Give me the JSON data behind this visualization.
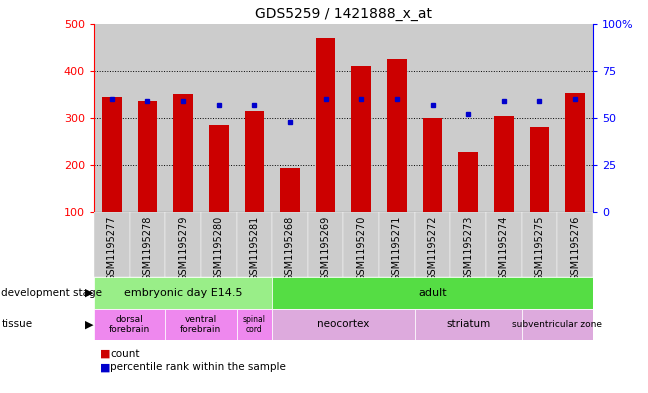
{
  "title": "GDS5259 / 1421888_x_at",
  "samples": [
    "GSM1195277",
    "GSM1195278",
    "GSM1195279",
    "GSM1195280",
    "GSM1195281",
    "GSM1195268",
    "GSM1195269",
    "GSM1195270",
    "GSM1195271",
    "GSM1195272",
    "GSM1195273",
    "GSM1195274",
    "GSM1195275",
    "GSM1195276"
  ],
  "counts": [
    345,
    335,
    350,
    285,
    315,
    193,
    470,
    410,
    425,
    300,
    228,
    305,
    280,
    352
  ],
  "percentiles": [
    60,
    59,
    59,
    57,
    57,
    48,
    60,
    60,
    60,
    57,
    52,
    59,
    59,
    60
  ],
  "ymin": 100,
  "ymax": 500,
  "yticks_left": [
    100,
    200,
    300,
    400,
    500
  ],
  "right_yticks": [
    0,
    25,
    50,
    75,
    100
  ],
  "bar_color": "#cc0000",
  "dot_color": "#0000cc",
  "development_stages": [
    {
      "label": "embryonic day E14.5",
      "start": 0,
      "end": 5,
      "color": "#99ee88"
    },
    {
      "label": "adult",
      "start": 5,
      "end": 14,
      "color": "#55dd44"
    }
  ],
  "tissues": [
    {
      "label": "dorsal\nforebrain",
      "start": 0,
      "end": 2,
      "color": "#ee88ee"
    },
    {
      "label": "ventral\nforebrain",
      "start": 2,
      "end": 4,
      "color": "#ee88ee"
    },
    {
      "label": "spinal\ncord",
      "start": 4,
      "end": 5,
      "color": "#ee88ee"
    },
    {
      "label": "neocortex",
      "start": 5,
      "end": 9,
      "color": "#ddaadd"
    },
    {
      "label": "striatum",
      "start": 9,
      "end": 12,
      "color": "#ddaadd"
    },
    {
      "label": "subventricular zone",
      "start": 12,
      "end": 14,
      "color": "#ddaadd"
    }
  ],
  "bar_width": 0.55,
  "bg_color": "#cccccc",
  "tick_label_fontsize": 7,
  "fig_width": 6.48,
  "fig_height": 3.93,
  "dpi": 100
}
